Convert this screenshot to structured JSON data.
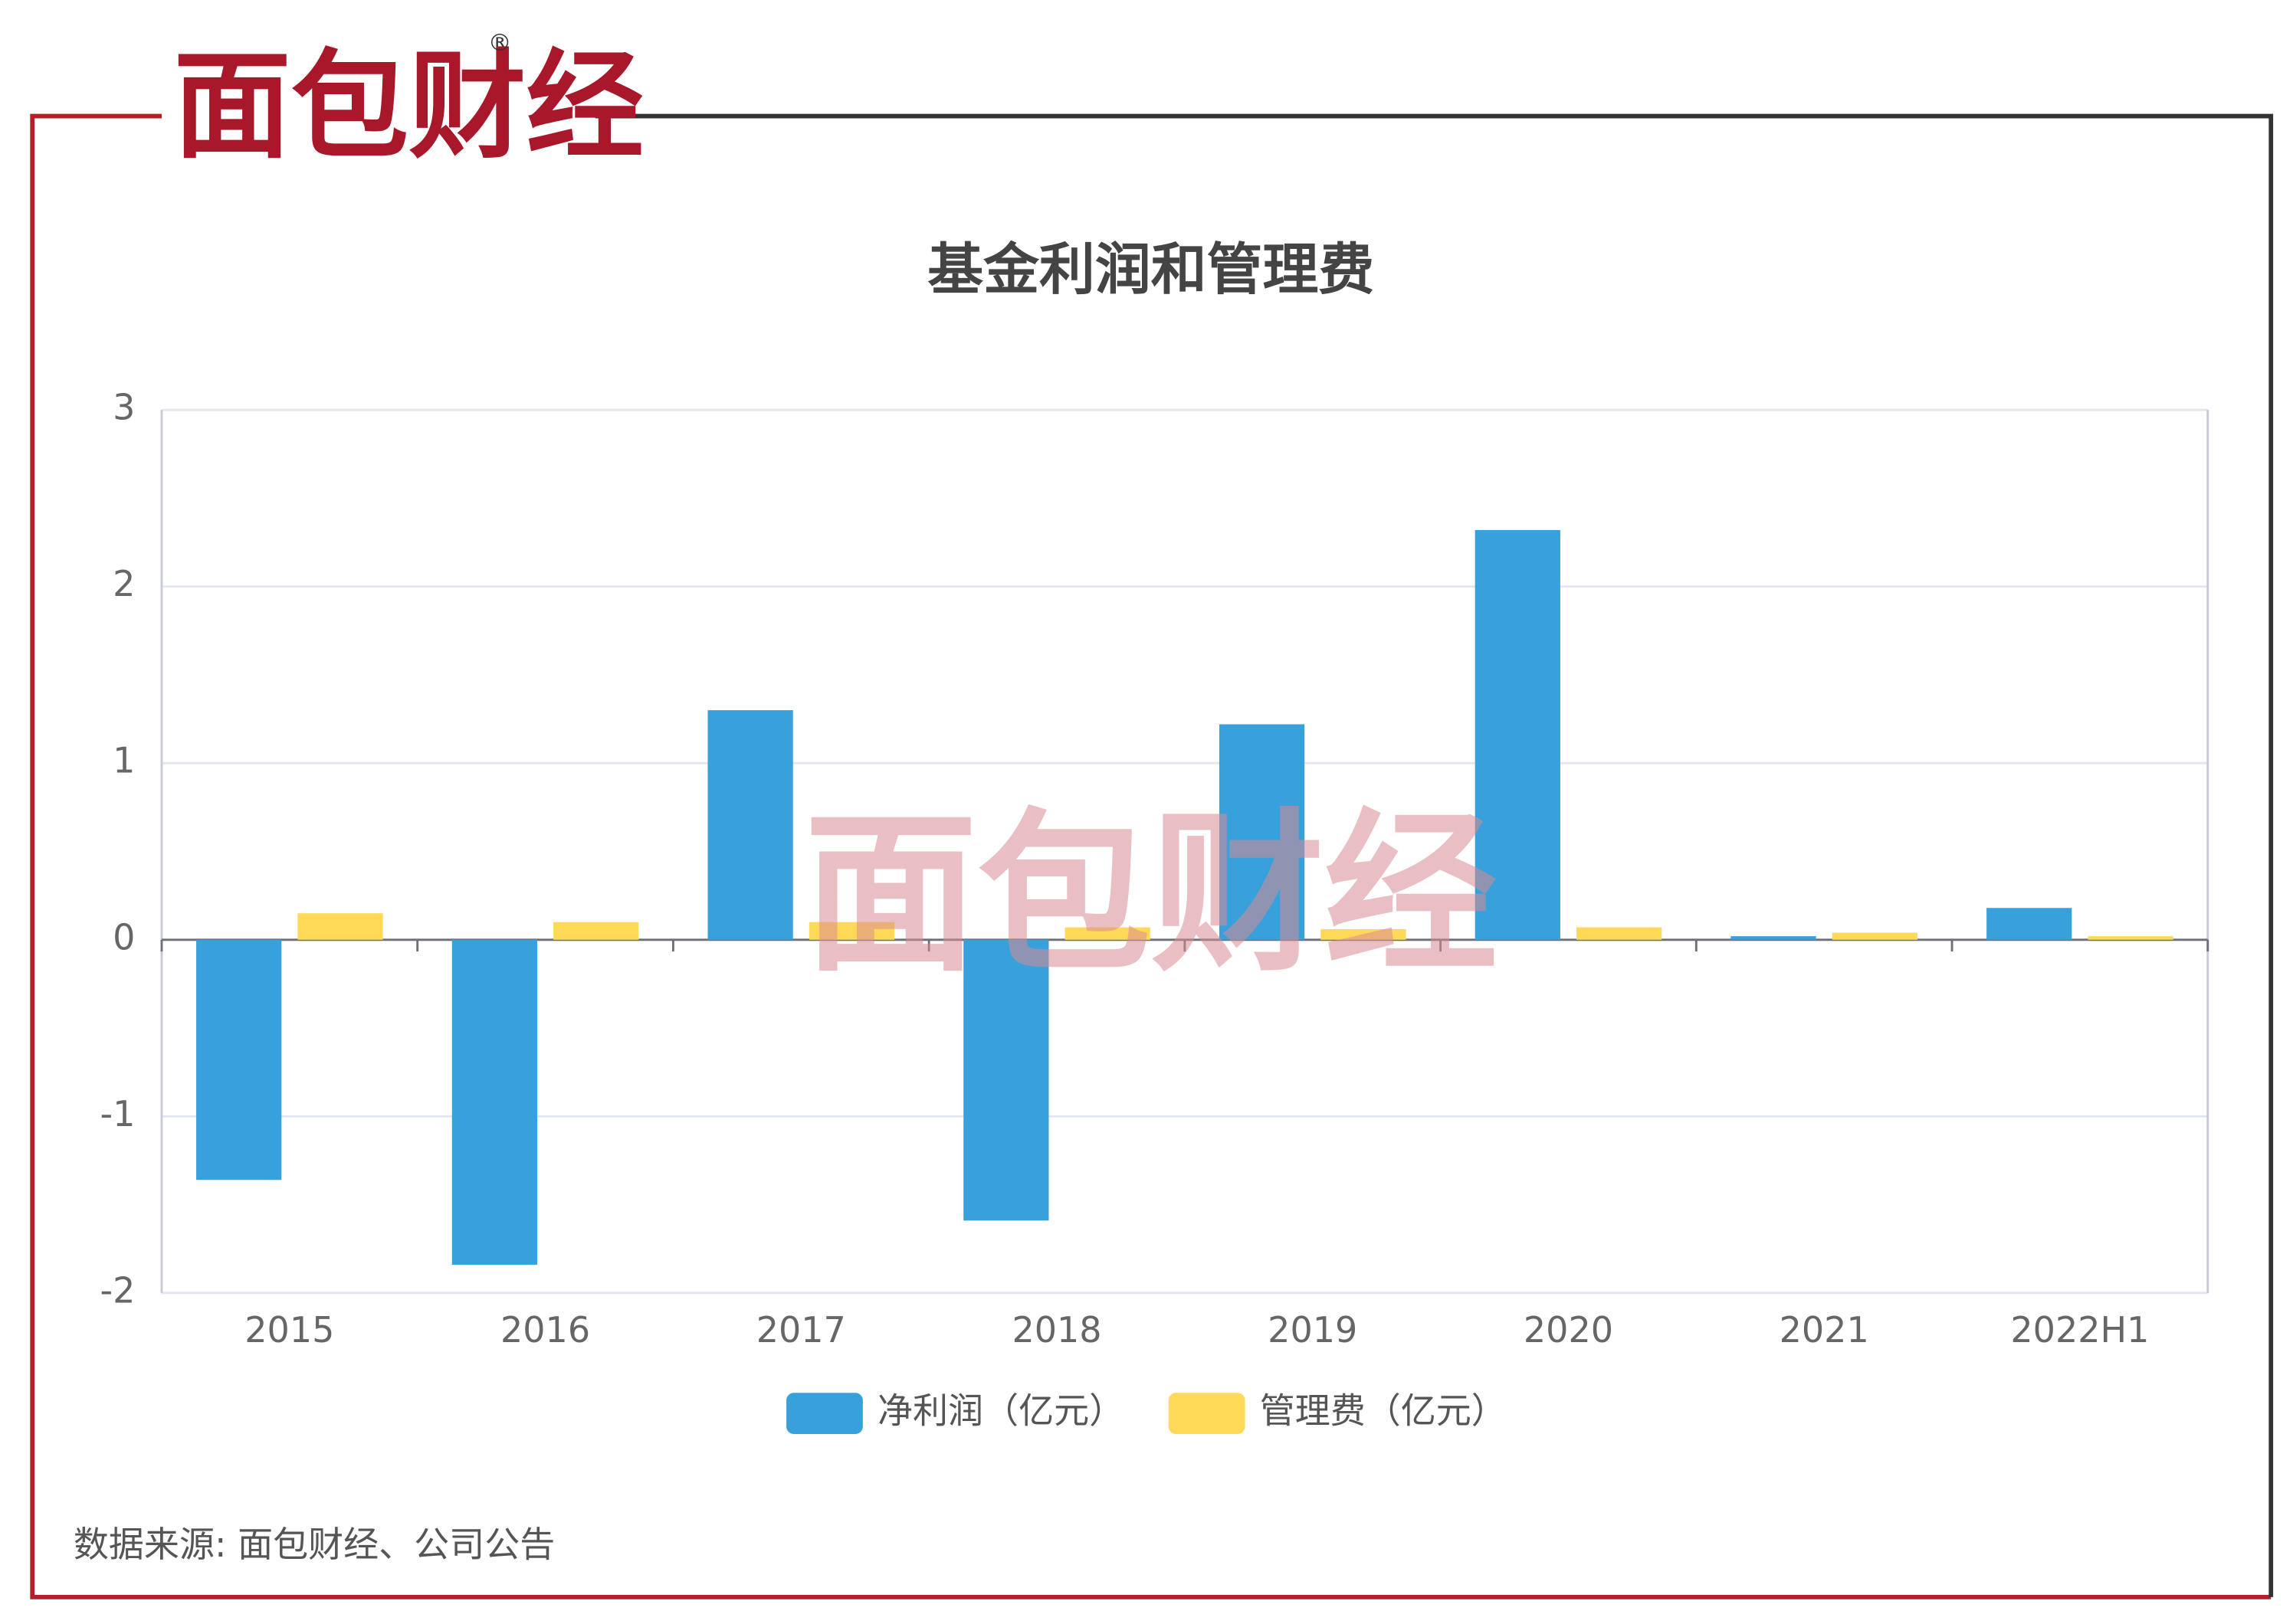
{
  "logo": "面包财经",
  "registered": "®",
  "source": "数据来源: 面包财经、公司公告",
  "watermark": "面包财经",
  "chart_data": {
    "type": "bar",
    "title": "基金利润和管理费",
    "categories": [
      "2015",
      "2016",
      "2017",
      "2018",
      "2019",
      "2020",
      "2021",
      "2022H1"
    ],
    "series": [
      {
        "name": "净利润（亿元）",
        "color": "#38a1db",
        "values": [
          -1.36,
          -1.84,
          1.3,
          -1.59,
          1.22,
          2.32,
          0.02,
          0.18
        ]
      },
      {
        "name": "管理费（亿元）",
        "color": "#ffd957",
        "values": [
          0.15,
          0.1,
          0.1,
          0.07,
          0.06,
          0.07,
          0.04,
          0.02
        ]
      }
    ],
    "ylim": [
      -2,
      3
    ],
    "yticks": [
      -2,
      -1,
      0,
      1,
      2,
      3
    ],
    "grid": true,
    "legend": "bottom"
  }
}
